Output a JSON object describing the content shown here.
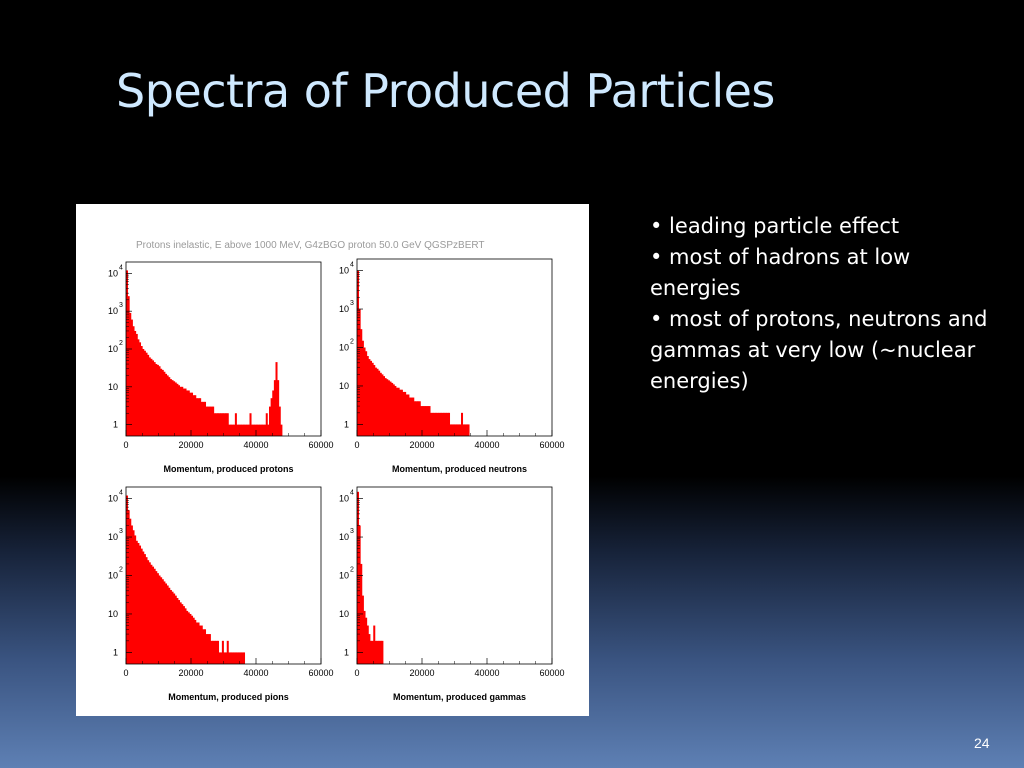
{
  "slide": {
    "title": "Spectra of Produced Particles",
    "page_number": "24",
    "bullets": [
      "• leading particle effect",
      "• most of hadrons at low energies",
      "• most of protons, neutrons and gammas at very low (~nuclear energies)"
    ]
  },
  "figure": {
    "header": "Protons inelastic, E above 1000 MeV,  G4zBGO proton 50.0 GeV QGSPzBERT"
  },
  "colors": {
    "bars": "#ff0000",
    "title": "#cfe9ff",
    "text": "#ffffff"
  },
  "chart_data": [
    {
      "type": "bar",
      "xlabel": "Momentum, produced protons",
      "ylabel": "",
      "xlim": [
        0,
        60000
      ],
      "ylim": [
        0.5,
        20000
      ],
      "y_scale": "log",
      "xticks": [
        "0",
        "20000",
        "40000",
        "60000"
      ],
      "yticks": [
        {
          "v": 1,
          "b": "1",
          "e": ""
        },
        {
          "v": 10,
          "b": "10",
          "e": ""
        },
        {
          "v": 100,
          "b": "10",
          "e": "2"
        },
        {
          "v": 1000,
          "b": "10",
          "e": "3"
        },
        {
          "v": 10000,
          "b": "10",
          "e": "4"
        }
      ],
      "bin_width": 500,
      "values": [
        12000,
        2500,
        900,
        600,
        400,
        300,
        250,
        180,
        150,
        120,
        100,
        90,
        80,
        70,
        60,
        55,
        50,
        45,
        40,
        38,
        35,
        30,
        28,
        25,
        22,
        20,
        18,
        16,
        15,
        14,
        13,
        12,
        11,
        10,
        10,
        9,
        9,
        8,
        8,
        7,
        7,
        6,
        6,
        5,
        5,
        5,
        4,
        4,
        4,
        3,
        3,
        3,
        3,
        3,
        2,
        2,
        2,
        2,
        2,
        2,
        2,
        2,
        2,
        1,
        1,
        1,
        1,
        2,
        1,
        1,
        1,
        1,
        1,
        1,
        1,
        1,
        2,
        1,
        1,
        1,
        1,
        1,
        1,
        1,
        1,
        1,
        2,
        1,
        3,
        5,
        8,
        15,
        45,
        15,
        3,
        1
      ]
    },
    {
      "type": "bar",
      "xlabel": "Momentum, produced neutrons",
      "ylabel": "",
      "xlim": [
        0,
        60000
      ],
      "ylim": [
        0.5,
        20000
      ],
      "y_scale": "log",
      "xticks": [
        "0",
        "20000",
        "40000",
        "60000"
      ],
      "yticks": [
        {
          "v": 1,
          "b": "1",
          "e": ""
        },
        {
          "v": 10,
          "b": "10",
          "e": ""
        },
        {
          "v": 100,
          "b": "10",
          "e": "2"
        },
        {
          "v": 1000,
          "b": "10",
          "e": "3"
        },
        {
          "v": 10000,
          "b": "10",
          "e": "4"
        }
      ],
      "bin_width": 500,
      "values": [
        10000,
        1000,
        300,
        150,
        100,
        80,
        60,
        50,
        45,
        40,
        35,
        30,
        28,
        25,
        22,
        20,
        18,
        16,
        15,
        14,
        13,
        12,
        11,
        10,
        9,
        9,
        8,
        8,
        7,
        7,
        6,
        6,
        5,
        5,
        5,
        4,
        4,
        4,
        4,
        3,
        3,
        3,
        3,
        3,
        3,
        2,
        2,
        2,
        2,
        2,
        2,
        2,
        2,
        2,
        2,
        2,
        2,
        1,
        1,
        1,
        1,
        1,
        1,
        1,
        2,
        1,
        1,
        1,
        1
      ]
    },
    {
      "type": "bar",
      "xlabel": "Momentum, produced pions",
      "ylabel": "",
      "xlim": [
        0,
        60000
      ],
      "ylim": [
        0.5,
        20000
      ],
      "y_scale": "log",
      "xticks": [
        "0",
        "20000",
        "40000",
        "60000"
      ],
      "yticks": [
        {
          "v": 1,
          "b": "1",
          "e": ""
        },
        {
          "v": 10,
          "b": "10",
          "e": ""
        },
        {
          "v": 100,
          "b": "10",
          "e": "2"
        },
        {
          "v": 1000,
          "b": "10",
          "e": "3"
        },
        {
          "v": 10000,
          "b": "10",
          "e": "4"
        }
      ],
      "bin_width": 500,
      "values": [
        12000,
        5000,
        3000,
        2000,
        1500,
        1100,
        800,
        700,
        600,
        500,
        420,
        360,
        300,
        250,
        220,
        190,
        170,
        150,
        130,
        115,
        100,
        90,
        80,
        70,
        62,
        55,
        48,
        42,
        38,
        34,
        30,
        26,
        23,
        20,
        18,
        16,
        14,
        12,
        11,
        10,
        9,
        8,
        7,
        6,
        6,
        5,
        5,
        4,
        4,
        3,
        3,
        3,
        2,
        2,
        2,
        2,
        2,
        1,
        1,
        2,
        1,
        1,
        2,
        1,
        1,
        1,
        1,
        1,
        1,
        1,
        1,
        1,
        1
      ]
    },
    {
      "type": "bar",
      "xlabel": "Momentum, produced gammas",
      "ylabel": "",
      "xlim": [
        0,
        60000
      ],
      "ylim": [
        0.5,
        20000
      ],
      "y_scale": "log",
      "xticks": [
        "0",
        "20000",
        "40000",
        "60000"
      ],
      "yticks": [
        {
          "v": 1,
          "b": "1",
          "e": ""
        },
        {
          "v": 10,
          "b": "10",
          "e": ""
        },
        {
          "v": 100,
          "b": "10",
          "e": "2"
        },
        {
          "v": 1000,
          "b": "10",
          "e": "3"
        },
        {
          "v": 10000,
          "b": "10",
          "e": "4"
        }
      ],
      "bin_width": 500,
      "values": [
        15000,
        2000,
        200,
        30,
        12,
        8,
        5,
        3,
        2,
        2,
        5,
        2,
        2,
        2,
        2,
        2
      ]
    }
  ]
}
